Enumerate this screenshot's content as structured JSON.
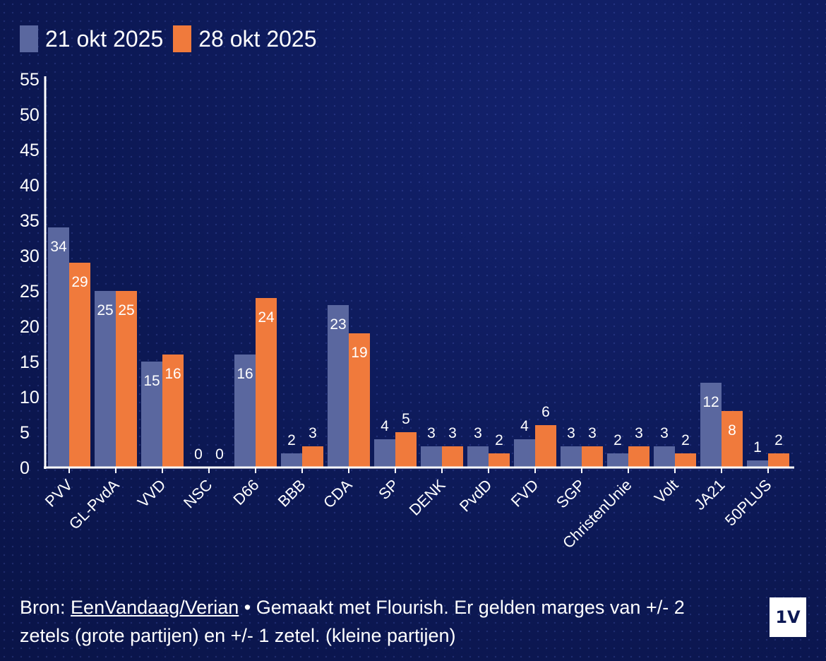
{
  "legend": [
    {
      "label": "21 okt 2025",
      "color": "#5a679f"
    },
    {
      "label": "28 okt 2025",
      "color": "#f07a3c"
    }
  ],
  "chart_data": {
    "type": "bar",
    "categories": [
      "PVV",
      "GL-PvdA",
      "VVD",
      "NSC",
      "D66",
      "BBB",
      "CDA",
      "SP",
      "DENK",
      "PvdD",
      "FVD",
      "SGP",
      "ChristenUnie",
      "Volt",
      "JA21",
      "50PLUS"
    ],
    "series": [
      {
        "name": "21 okt 2025",
        "values": [
          34,
          25,
          15,
          0,
          16,
          2,
          23,
          4,
          3,
          3,
          4,
          3,
          2,
          3,
          12,
          1
        ]
      },
      {
        "name": "28 okt 2025",
        "values": [
          29,
          25,
          16,
          0,
          24,
          3,
          19,
          5,
          3,
          2,
          6,
          3,
          3,
          2,
          8,
          2
        ]
      }
    ],
    "yticks": [
      0,
      5,
      10,
      15,
      20,
      25,
      30,
      35,
      40,
      45,
      50,
      55
    ],
    "ylim": [
      0,
      55
    ],
    "title": "",
    "xlabel": "",
    "ylabel": ""
  },
  "footer": {
    "prefix": "Bron: ",
    "link": "EenVandaag/Verian",
    "line1_rest": " • Gemaakt met Flourish. Er gelden marges van +/- 2",
    "line2": "zetels (grote partijen) en +/- 1 zetel. (kleine partijen)"
  },
  "logo": "1V"
}
